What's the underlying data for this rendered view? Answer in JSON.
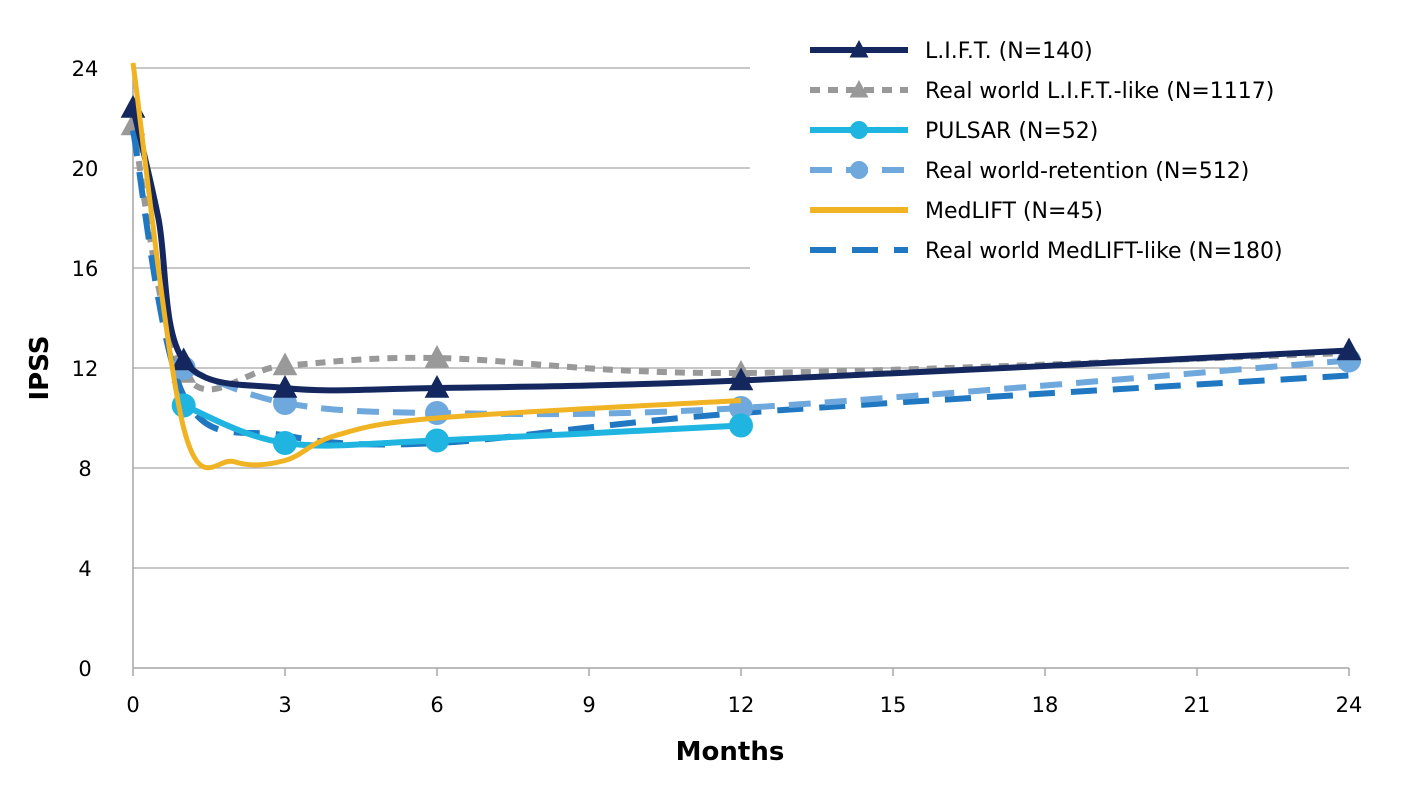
{
  "chart_data": {
    "type": "line",
    "xlabel": "Months",
    "ylabel": "IPSS",
    "xlim": [
      0,
      24
    ],
    "ylim": [
      0,
      24
    ],
    "x_ticks": [
      0,
      3,
      6,
      9,
      12,
      15,
      18,
      21,
      24
    ],
    "y_ticks": [
      0,
      4,
      8,
      12,
      16,
      20,
      24
    ],
    "grid": "horizontal",
    "legend_position": "top-right",
    "series": [
      {
        "name": "L.I.F.T. (N=140)",
        "color": "#14285f",
        "style": "solid",
        "marker": "triangle",
        "x": [
          0,
          0.5,
          1,
          3,
          6,
          12,
          24
        ],
        "y": [
          22.4,
          18.0,
          12.3,
          11.2,
          11.2,
          11.5,
          12.7
        ]
      },
      {
        "name": "Real world L.I.F.T.-like (N=1117)",
        "color": "#999999",
        "style": "dotted",
        "marker": "triangle",
        "x": [
          0,
          1,
          3,
          6,
          12,
          24
        ],
        "y": [
          21.7,
          11.8,
          12.1,
          12.4,
          11.8,
          12.6
        ]
      },
      {
        "name": "PULSAR (N=52)",
        "color": "#1fb5e0",
        "style": "solid",
        "marker": "circle",
        "x": [
          1,
          3,
          6,
          12
        ],
        "y": [
          10.5,
          9.0,
          9.1,
          9.7
        ]
      },
      {
        "name": "Real world-retention (N=512)",
        "color": "#6fa8dc",
        "style": "dashed",
        "marker": "circle",
        "x": [
          1,
          3,
          6,
          12,
          24
        ],
        "y": [
          12.0,
          10.6,
          10.2,
          10.4,
          12.3
        ]
      },
      {
        "name": "MedLIFT (N=45)",
        "color": "#f0b323",
        "style": "solid",
        "marker": "none",
        "x": [
          0,
          1,
          2,
          3,
          4,
          6,
          12
        ],
        "y": [
          24.2,
          9.6,
          8.25,
          8.3,
          9.3,
          10.0,
          10.7
        ]
      },
      {
        "name": "Real world MedLIFT-like (N=180)",
        "color": "#1f78c1",
        "style": "longdash",
        "marker": "none",
        "x": [
          0,
          1,
          3,
          6,
          12,
          24
        ],
        "y": [
          21.5,
          10.9,
          9.3,
          9.0,
          10.2,
          11.7
        ]
      }
    ]
  }
}
